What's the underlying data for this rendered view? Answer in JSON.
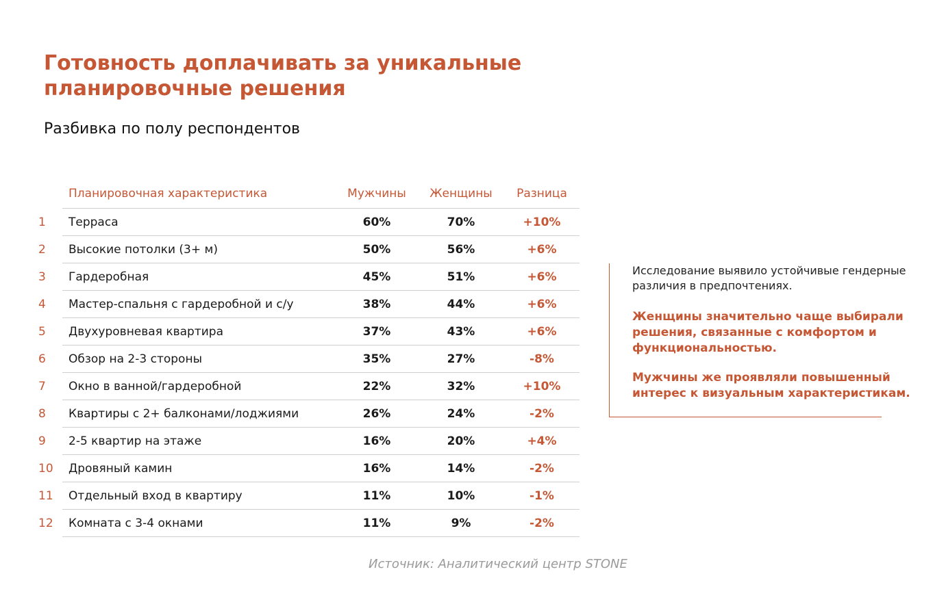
{
  "title": "Готовность доплачивать за уникальные планировочные решения",
  "subtitle": "Разбивка по полу респондентов",
  "table": {
    "headers": {
      "name": "Планировочная характеристика",
      "men": "Мужчины",
      "women": "Женщины",
      "diff": "Разница"
    },
    "rows": [
      {
        "num": "1",
        "name": "Терраса",
        "men": "60%",
        "women": "70%",
        "diff": "+10%"
      },
      {
        "num": "2",
        "name": "Высокие потолки (3+ м)",
        "men": "50%",
        "women": "56%",
        "diff": "+6%"
      },
      {
        "num": "3",
        "name": "Гардеробная",
        "men": "45%",
        "women": "51%",
        "diff": "+6%"
      },
      {
        "num": "4",
        "name": "Мастер-спальня с гардеробной и с/у",
        "men": "38%",
        "women": "44%",
        "diff": "+6%"
      },
      {
        "num": "5",
        "name": "Двухуровневая квартира",
        "men": "37%",
        "women": "43%",
        "diff": "+6%"
      },
      {
        "num": "6",
        "name": "Обзор на 2-3 стороны",
        "men": "35%",
        "women": "27%",
        "diff": "-8%"
      },
      {
        "num": "7",
        "name": "Окно в ванной/гардеробной",
        "men": "22%",
        "women": "32%",
        "diff": "+10%"
      },
      {
        "num": "8",
        "name": "Квартиры с 2+ балконами/лоджиями",
        "men": "26%",
        "women": "24%",
        "diff": "-2%"
      },
      {
        "num": "9",
        "name": "2-5 квартир на этаже",
        "men": "16%",
        "women": "20%",
        "diff": "+4%"
      },
      {
        "num": "10",
        "name": "Дровяный камин",
        "men": "16%",
        "women": "14%",
        "diff": "-2%"
      },
      {
        "num": "11",
        "name": "Отдельный вход в квартиру",
        "men": "11%",
        "women": "10%",
        "diff": "-1%"
      },
      {
        "num": "12",
        "name": "Комната с 3-4 окнами",
        "men": "11%",
        "women": "9%",
        "diff": "-2%"
      }
    ]
  },
  "note": {
    "p1": "Исследование выявило устойчивые гендерные различия в предпочтениях.",
    "p2": "Женщины значительно чаще выбирали решения, связанные с комфортом и функциональностью.",
    "p3": "Мужчины же проявляли повышенный интерес к визуальным характеристикам."
  },
  "source": "Источник: Аналитический центр STONE",
  "colors": {
    "accent": "#c55735",
    "text": "#1a1a1a",
    "muted": "#9a9a9a"
  }
}
